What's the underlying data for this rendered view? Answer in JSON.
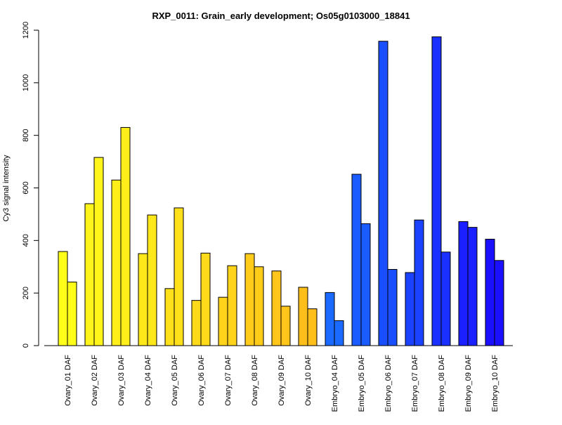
{
  "chart_data": {
    "type": "bar",
    "title": "RXP_0011: Grain_early development; Os05g0103000_18841",
    "xlabel": "",
    "ylabel": "Cy3 signal intensity",
    "ylim": [
      0,
      1200
    ],
    "yticks": [
      0,
      200,
      400,
      600,
      800,
      1000,
      1200
    ],
    "grid": false,
    "legend": "none",
    "categories": [
      "Ovary_01 DAF",
      "Ovary_02 DAF",
      "Ovary_03 DAF",
      "Ovary_04 DAF",
      "Ovary_05 DAF",
      "Ovary_06 DAF",
      "Ovary_07 DAF",
      "Ovary_08 DAF",
      "Ovary_09 DAF",
      "Ovary_10 DAF",
      "Embryo_04 DAF",
      "Embryo_05 DAF",
      "Embryo_06 DAF",
      "Embryo_07 DAF",
      "Embryo_08 DAF",
      "Embryo_09 DAF",
      "Embryo_10 DAF"
    ],
    "colors": [
      "#ffff1a",
      "#fff51a",
      "#ffee1a",
      "#ffe81a",
      "#ffe01a",
      "#ffda1a",
      "#ffd31a",
      "#ffcc1a",
      "#ffc51a",
      "#ffbf1a",
      "#1a6aff",
      "#1a5cff",
      "#1a4fff",
      "#1a42ff",
      "#1a30ff",
      "#1a20ff",
      "#1a10ff"
    ],
    "series": [
      {
        "values": [
          358,
          540,
          630,
          350,
          217,
          172,
          184,
          350,
          284,
          222,
          202,
          652,
          1158,
          278,
          1175,
          472,
          405
        ]
      },
      {
        "values": [
          242,
          716,
          830,
          497,
          524,
          352,
          304,
          300,
          150,
          140,
          95,
          464,
          290,
          478,
          356,
          450,
          324
        ]
      }
    ]
  }
}
